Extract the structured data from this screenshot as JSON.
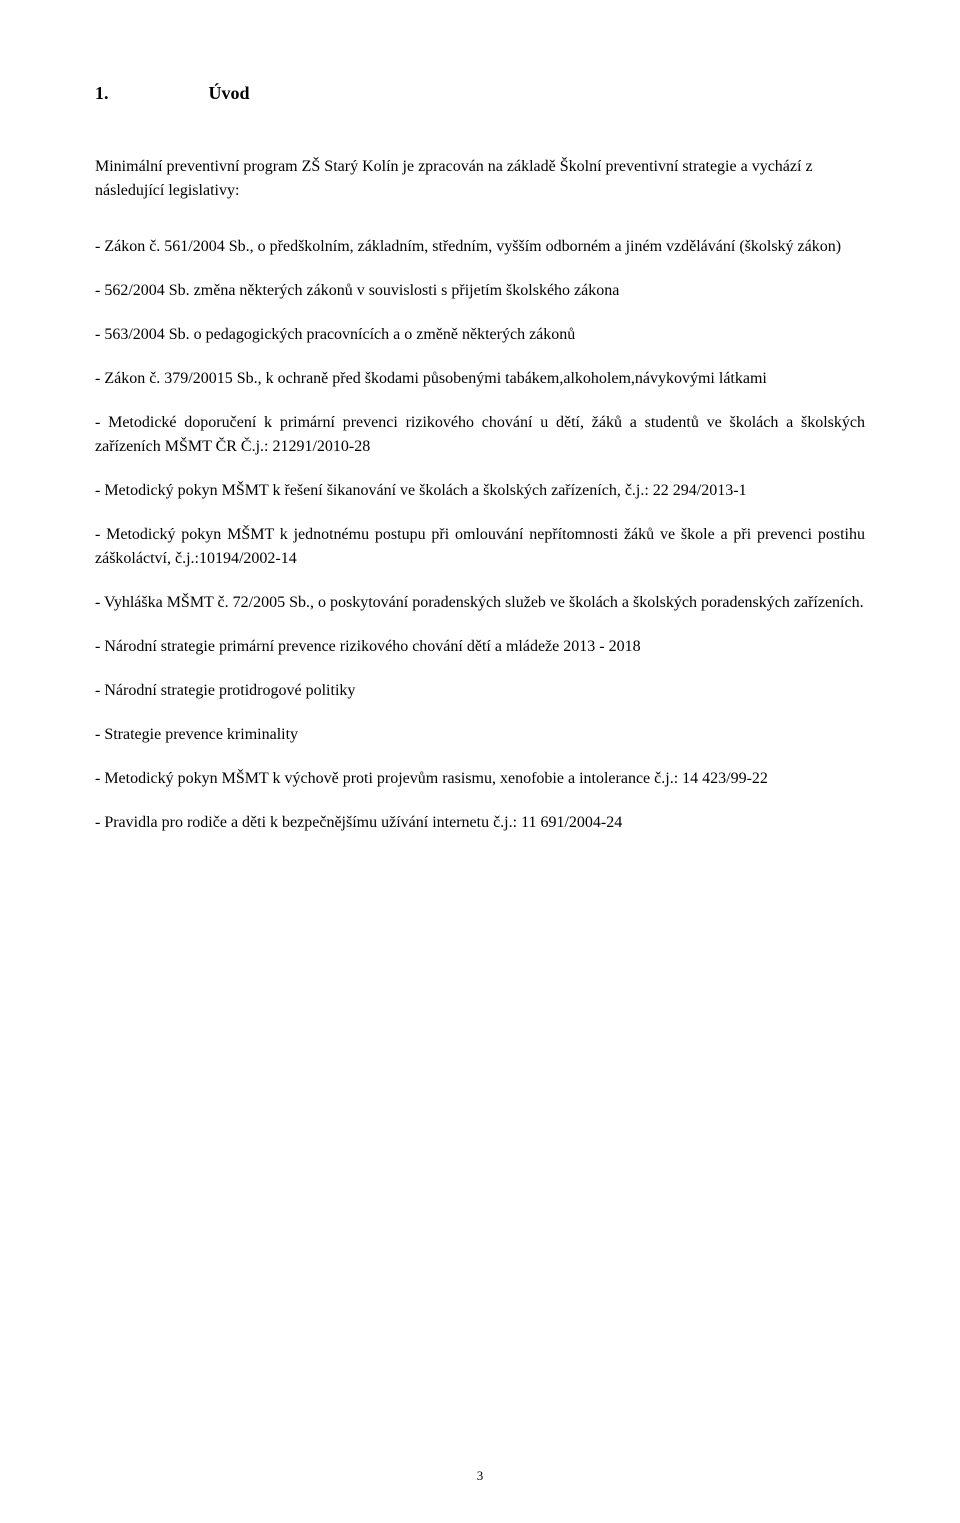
{
  "section": {
    "number": "1.",
    "title": "Úvod"
  },
  "intro": "Minimální preventivní program ZŠ Starý Kolín je zpracován na základě Školní preventivní strategie a vychází z následující legislativy:",
  "paragraphs": [
    "- Zákon č. 561/2004 Sb., o předškolním, základním, středním, vyšším odborném a jiném vzdělávání (školský zákon)",
    "- 562/2004 Sb. změna některých zákonů v souvislosti s přijetím školského zákona",
    "- 563/2004 Sb. o pedagogických pracovnících a o změně některých zákonů",
    "- Zákon č. 379/20015 Sb., k ochraně před škodami působenými tabákem,alkoholem,návykovými látkami",
    "- Metodické doporučení k primární prevenci rizikového chování u dětí, žáků a studentů ve školách a školských zařízeních MŠMT ČR Č.j.: 21291/2010-28",
    "- Metodický pokyn MŠMT k řešení šikanování ve školách a školských zařízeních, č.j.: 22 294/2013-1",
    "- Metodický pokyn MŠMT k jednotnému postupu při omlouvání nepřítomnosti žáků ve škole a při prevenci postihu záškoláctví, č.j.:10194/2002-14",
    "- Vyhláška MŠMT č. 72/2005 Sb., o poskytování poradenských služeb ve školách a školských poradenských zařízeních.",
    "- Národní strategie primární prevence rizikového chování dětí a mládeže 2013 - 2018",
    "- Národní strategie protidrogové politiky",
    "- Strategie prevence kriminality",
    "- Metodický pokyn MŠMT k výchově proti projevům rasismu, xenofobie a intolerance č.j.: 14 423/99-22",
    "- Pravidla pro rodiče a děti k bezpečnějšímu užívání internetu č.j.: 11 691/2004-24"
  ],
  "pageNumber": "3"
}
